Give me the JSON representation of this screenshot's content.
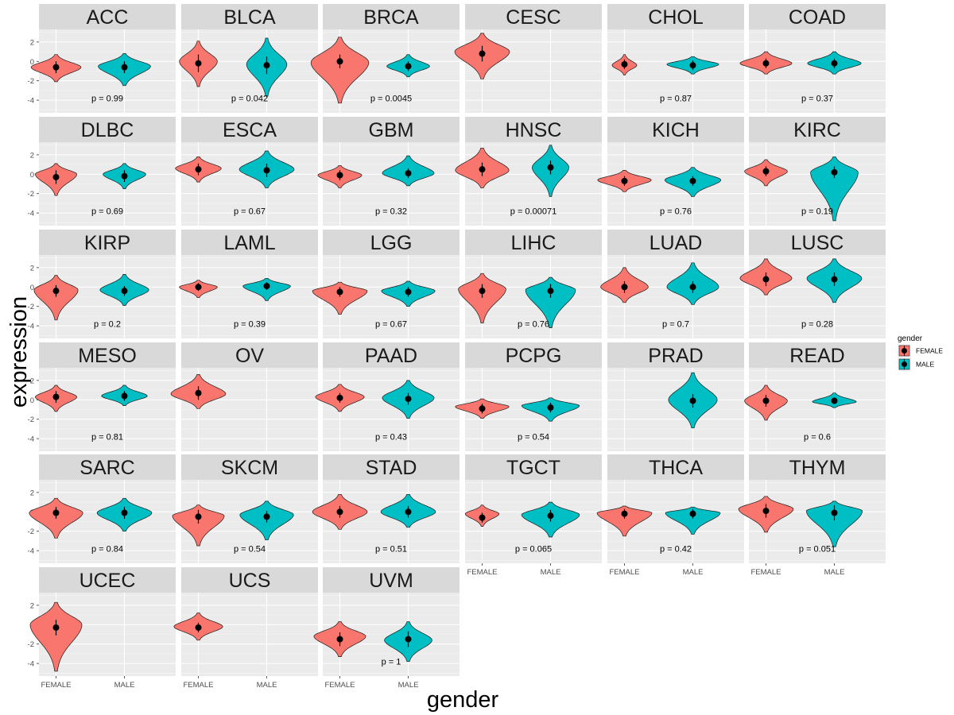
{
  "chart_data": {
    "type": "violin",
    "xlabel": "gender",
    "ylabel": "expression",
    "categories": [
      "FEMALE",
      "MALE"
    ],
    "y_ticks": [
      2,
      0,
      -2,
      -4
    ],
    "ylim": [
      -5.3,
      3.3
    ],
    "grid": true,
    "legend": {
      "title": "gender",
      "position": "right",
      "entries": [
        {
          "label": "FEMALE",
          "color": "#F8766D"
        },
        {
          "label": "MALE",
          "color": "#00BFC4"
        }
      ]
    },
    "facets": [
      {
        "name": "ACC",
        "p": "p = 0.99",
        "groups": [
          {
            "g": "FEMALE",
            "lo": -2.1,
            "hi": 0.7,
            "mode": -0.6,
            "w": 0.82,
            "mean": -0.6,
            "se": 0.6
          },
          {
            "g": "MALE",
            "lo": -2.5,
            "hi": 0.8,
            "mode": -0.5,
            "w": 0.86,
            "mean": -0.6,
            "se": 0.6
          }
        ]
      },
      {
        "name": "BLCA",
        "p": "p = 0.042",
        "groups": [
          {
            "g": "FEMALE",
            "lo": -2.6,
            "hi": 2.1,
            "mode": 0.0,
            "w": 0.62,
            "mean": -0.2,
            "se": 0.9
          },
          {
            "g": "MALE",
            "lo": -3.6,
            "hi": 2.4,
            "mode": -0.3,
            "w": 0.66,
            "mean": -0.4,
            "se": 0.9
          }
        ]
      },
      {
        "name": "BRCA",
        "p": "p = 0.0045",
        "groups": [
          {
            "g": "FEMALE",
            "lo": -4.3,
            "hi": 2.5,
            "mode": -0.1,
            "w": 0.95,
            "mean": 0.0,
            "se": 0.7
          },
          {
            "g": "MALE",
            "lo": -1.6,
            "hi": 0.7,
            "mode": -0.5,
            "w": 0.7,
            "mean": -0.5,
            "se": 0.5
          }
        ]
      },
      {
        "name": "CESC",
        "p": "",
        "groups": [
          {
            "g": "FEMALE",
            "lo": -1.8,
            "hi": 2.9,
            "mode": 1.0,
            "w": 0.9,
            "mean": 0.8,
            "se": 0.8
          }
        ]
      },
      {
        "name": "CHOL",
        "p": "p = 0.87",
        "groups": [
          {
            "g": "FEMALE",
            "lo": -1.4,
            "hi": 0.7,
            "mode": -0.4,
            "w": 0.4,
            "mean": -0.3,
            "se": 0.5
          },
          {
            "g": "MALE",
            "lo": -1.3,
            "hi": 0.5,
            "mode": -0.3,
            "w": 0.85,
            "mean": -0.4,
            "se": 0.5
          }
        ]
      },
      {
        "name": "COAD",
        "p": "p = 0.37",
        "groups": [
          {
            "g": "FEMALE",
            "lo": -1.3,
            "hi": 1.0,
            "mode": -0.2,
            "w": 0.85,
            "mean": -0.2,
            "se": 0.5
          },
          {
            "g": "MALE",
            "lo": -1.3,
            "hi": 1.0,
            "mode": -0.2,
            "w": 0.88,
            "mean": -0.2,
            "se": 0.5
          }
        ]
      },
      {
        "name": "DLBC",
        "p": "p = 0.69",
        "groups": [
          {
            "g": "FEMALE",
            "lo": -2.2,
            "hi": 1.1,
            "mode": 0.0,
            "w": 0.68,
            "mean": -0.3,
            "se": 0.7
          },
          {
            "g": "MALE",
            "lo": -1.5,
            "hi": 1.1,
            "mode": 0.0,
            "w": 0.7,
            "mean": -0.2,
            "se": 0.6
          }
        ]
      },
      {
        "name": "ESCA",
        "p": "p = 0.67",
        "groups": [
          {
            "g": "FEMALE",
            "lo": -0.8,
            "hi": 1.8,
            "mode": 0.6,
            "w": 0.75,
            "mean": 0.5,
            "se": 0.6
          },
          {
            "g": "MALE",
            "lo": -1.4,
            "hi": 2.4,
            "mode": 0.5,
            "w": 0.9,
            "mean": 0.4,
            "se": 0.7
          }
        ]
      },
      {
        "name": "GBM",
        "p": "p = 0.32",
        "groups": [
          {
            "g": "FEMALE",
            "lo": -1.4,
            "hi": 0.9,
            "mode": -0.1,
            "w": 0.72,
            "mean": -0.1,
            "se": 0.5
          },
          {
            "g": "MALE",
            "lo": -1.2,
            "hi": 1.9,
            "mode": 0.1,
            "w": 0.85,
            "mean": 0.1,
            "se": 0.5
          }
        ]
      },
      {
        "name": "HNSC",
        "p": "p = 0.00071",
        "groups": [
          {
            "g": "FEMALE",
            "lo": -1.4,
            "hi": 2.7,
            "mode": 0.4,
            "w": 0.88,
            "mean": 0.5,
            "se": 0.7
          },
          {
            "g": "MALE",
            "lo": -2.3,
            "hi": 3.0,
            "mode": 0.7,
            "w": 0.6,
            "mean": 0.7,
            "se": 0.7
          }
        ]
      },
      {
        "name": "KICH",
        "p": "p = 0.76",
        "groups": [
          {
            "g": "FEMALE",
            "lo": -1.8,
            "hi": 0.4,
            "mode": -0.6,
            "w": 0.88,
            "mean": -0.7,
            "se": 0.5
          },
          {
            "g": "MALE",
            "lo": -2.3,
            "hi": 0.7,
            "mode": -0.6,
            "w": 0.92,
            "mean": -0.7,
            "se": 0.5
          }
        ]
      },
      {
        "name": "KIRC",
        "p": "p = 0.19",
        "groups": [
          {
            "g": "FEMALE",
            "lo": -1.2,
            "hi": 1.5,
            "mode": 0.3,
            "w": 0.7,
            "mean": 0.3,
            "se": 0.5
          },
          {
            "g": "MALE",
            "lo": -4.8,
            "hi": 1.8,
            "mode": 0.2,
            "w": 0.78,
            "mean": 0.2,
            "se": 0.6
          }
        ]
      },
      {
        "name": "KIRP",
        "p": "p = 0.2",
        "groups": [
          {
            "g": "FEMALE",
            "lo": -3.4,
            "hi": 1.2,
            "mode": -0.3,
            "w": 0.72,
            "mean": -0.4,
            "se": 0.6
          },
          {
            "g": "MALE",
            "lo": -1.9,
            "hi": 1.3,
            "mode": -0.3,
            "w": 0.8,
            "mean": -0.4,
            "se": 0.5
          }
        ]
      },
      {
        "name": "LAML",
        "p": "p = 0.39",
        "groups": [
          {
            "g": "FEMALE",
            "lo": -1.1,
            "hi": 0.7,
            "mode": 0.0,
            "w": 0.62,
            "mean": 0.0,
            "se": 0.4
          },
          {
            "g": "MALE",
            "lo": -1.4,
            "hi": 0.9,
            "mode": 0.1,
            "w": 0.78,
            "mean": 0.1,
            "se": 0.4
          }
        ]
      },
      {
        "name": "LGG",
        "p": "p = 0.67",
        "groups": [
          {
            "g": "FEMALE",
            "lo": -2.8,
            "hi": 0.5,
            "mode": -0.4,
            "w": 0.9,
            "mean": -0.5,
            "se": 0.5
          },
          {
            "g": "MALE",
            "lo": -2.0,
            "hi": 0.6,
            "mode": -0.4,
            "w": 0.88,
            "mean": -0.5,
            "se": 0.5
          }
        ]
      },
      {
        "name": "LIHC",
        "p": "p = 0.76",
        "groups": [
          {
            "g": "FEMALE",
            "lo": -3.7,
            "hi": 1.4,
            "mode": -0.2,
            "w": 0.78,
            "mean": -0.4,
            "se": 0.7
          },
          {
            "g": "MALE",
            "lo": -4.2,
            "hi": 1.0,
            "mode": -0.3,
            "w": 0.82,
            "mean": -0.4,
            "se": 0.7
          }
        ]
      },
      {
        "name": "LUAD",
        "p": "p = 0.7",
        "groups": [
          {
            "g": "FEMALE",
            "lo": -1.6,
            "hi": 2.0,
            "mode": 0.0,
            "w": 0.78,
            "mean": 0.0,
            "se": 0.6
          },
          {
            "g": "MALE",
            "lo": -1.8,
            "hi": 2.5,
            "mode": 0.0,
            "w": 0.85,
            "mean": 0.0,
            "se": 0.6
          }
        ]
      },
      {
        "name": "LUSC",
        "p": "p = 0.28",
        "groups": [
          {
            "g": "FEMALE",
            "lo": -0.8,
            "hi": 2.9,
            "mode": 0.9,
            "w": 0.85,
            "mean": 0.8,
            "se": 0.7
          },
          {
            "g": "MALE",
            "lo": -1.6,
            "hi": 2.9,
            "mode": 0.9,
            "w": 0.9,
            "mean": 0.8,
            "se": 0.7
          }
        ]
      },
      {
        "name": "MESO",
        "p": "p = 0.81",
        "groups": [
          {
            "g": "FEMALE",
            "lo": -1.2,
            "hi": 1.5,
            "mode": 0.3,
            "w": 0.68,
            "mean": 0.3,
            "se": 0.6
          },
          {
            "g": "MALE",
            "lo": -0.6,
            "hi": 1.5,
            "mode": 0.4,
            "w": 0.75,
            "mean": 0.4,
            "se": 0.5
          }
        ]
      },
      {
        "name": "OV",
        "p": "",
        "groups": [
          {
            "g": "FEMALE",
            "lo": -0.9,
            "hi": 2.6,
            "mode": 0.6,
            "w": 0.9,
            "mean": 0.7,
            "se": 0.7
          }
        ]
      },
      {
        "name": "PAAD",
        "p": "p = 0.43",
        "groups": [
          {
            "g": "FEMALE",
            "lo": -1.2,
            "hi": 1.6,
            "mode": 0.3,
            "w": 0.8,
            "mean": 0.2,
            "se": 0.5
          },
          {
            "g": "MALE",
            "lo": -1.9,
            "hi": 2.0,
            "mode": 0.2,
            "w": 0.85,
            "mean": 0.1,
            "se": 0.6
          }
        ]
      },
      {
        "name": "PCPG",
        "p": "p = 0.54",
        "groups": [
          {
            "g": "FEMALE",
            "lo": -1.9,
            "hi": 0.1,
            "mode": -0.7,
            "w": 0.88,
            "mean": -0.9,
            "se": 0.5
          },
          {
            "g": "MALE",
            "lo": -2.2,
            "hi": 0.2,
            "mode": -0.6,
            "w": 0.95,
            "mean": -0.8,
            "se": 0.5
          }
        ]
      },
      {
        "name": "PRAD",
        "p": "",
        "groups": [
          {
            "g": "MALE",
            "lo": -2.9,
            "hi": 2.8,
            "mode": 0.0,
            "w": 0.8,
            "mean": -0.1,
            "se": 0.7
          }
        ]
      },
      {
        "name": "READ",
        "p": "p = 0.6",
        "groups": [
          {
            "g": "FEMALE",
            "lo": -2.1,
            "hi": 1.5,
            "mode": -0.1,
            "w": 0.7,
            "mean": -0.1,
            "se": 0.6
          },
          {
            "g": "MALE",
            "lo": -0.8,
            "hi": 0.7,
            "mode": -0.2,
            "w": 0.72,
            "mean": -0.1,
            "se": 0.3
          }
        ]
      },
      {
        "name": "SARC",
        "p": "p = 0.84",
        "groups": [
          {
            "g": "FEMALE",
            "lo": -2.7,
            "hi": 1.4,
            "mode": -0.1,
            "w": 0.88,
            "mean": -0.1,
            "se": 0.6
          },
          {
            "g": "MALE",
            "lo": -2.0,
            "hi": 1.4,
            "mode": -0.1,
            "w": 0.9,
            "mean": -0.1,
            "se": 0.6
          }
        ]
      },
      {
        "name": "SKCM",
        "p": "p = 0.54",
        "groups": [
          {
            "g": "FEMALE",
            "lo": -3.5,
            "hi": 0.7,
            "mode": -0.4,
            "w": 0.85,
            "mean": -0.5,
            "se": 0.7
          },
          {
            "g": "MALE",
            "lo": -2.9,
            "hi": 1.1,
            "mode": -0.3,
            "w": 0.88,
            "mean": -0.5,
            "se": 0.6
          }
        ]
      },
      {
        "name": "STAD",
        "p": "p = 0.51",
        "groups": [
          {
            "g": "FEMALE",
            "lo": -1.8,
            "hi": 1.8,
            "mode": 0.0,
            "w": 0.9,
            "mean": 0.0,
            "se": 0.6
          },
          {
            "g": "MALE",
            "lo": -1.6,
            "hi": 1.8,
            "mode": 0.0,
            "w": 0.9,
            "mean": 0.0,
            "se": 0.6
          }
        ]
      },
      {
        "name": "TGCT",
        "p": "p = 0.065",
        "groups": [
          {
            "g": "FEMALE",
            "lo": -1.5,
            "hi": 0.7,
            "mode": -0.2,
            "w": 0.55,
            "mean": -0.6,
            "se": 0.5
          },
          {
            "g": "MALE",
            "lo": -2.6,
            "hi": 1.0,
            "mode": -0.3,
            "w": 0.95,
            "mean": -0.4,
            "se": 0.6
          }
        ]
      },
      {
        "name": "THCA",
        "p": "p = 0.42",
        "groups": [
          {
            "g": "FEMALE",
            "lo": -2.5,
            "hi": 0.6,
            "mode": -0.1,
            "w": 0.9,
            "mean": -0.2,
            "se": 0.5
          },
          {
            "g": "MALE",
            "lo": -2.3,
            "hi": 0.5,
            "mode": -0.1,
            "w": 0.9,
            "mean": -0.2,
            "se": 0.5
          }
        ]
      },
      {
        "name": "THYM",
        "p": "p = 0.051",
        "groups": [
          {
            "g": "FEMALE",
            "lo": -2.1,
            "hi": 1.6,
            "mode": 0.3,
            "w": 0.9,
            "mean": 0.1,
            "se": 0.7
          },
          {
            "g": "MALE",
            "lo": -3.6,
            "hi": 1.1,
            "mode": 0.1,
            "w": 0.92,
            "mean": -0.1,
            "se": 0.8
          }
        ]
      },
      {
        "name": "UCEC",
        "p": "",
        "groups": [
          {
            "g": "FEMALE",
            "lo": -4.8,
            "hi": 2.3,
            "mode": 0.0,
            "w": 0.85,
            "mean": -0.3,
            "se": 0.8
          }
        ]
      },
      {
        "name": "UCS",
        "p": "",
        "groups": [
          {
            "g": "FEMALE",
            "lo": -1.6,
            "hi": 1.2,
            "mode": -0.2,
            "w": 0.8,
            "mean": -0.3,
            "se": 0.5
          }
        ]
      },
      {
        "name": "UVM",
        "p": "p = 1",
        "groups": [
          {
            "g": "FEMALE",
            "lo": -3.3,
            "hi": 0.3,
            "mode": -1.2,
            "w": 0.85,
            "mean": -1.5,
            "se": 0.7
          },
          {
            "g": "MALE",
            "lo": -3.8,
            "hi": 0.3,
            "mode": -1.6,
            "w": 0.78,
            "mean": -1.5,
            "se": 0.8
          }
        ]
      }
    ]
  }
}
